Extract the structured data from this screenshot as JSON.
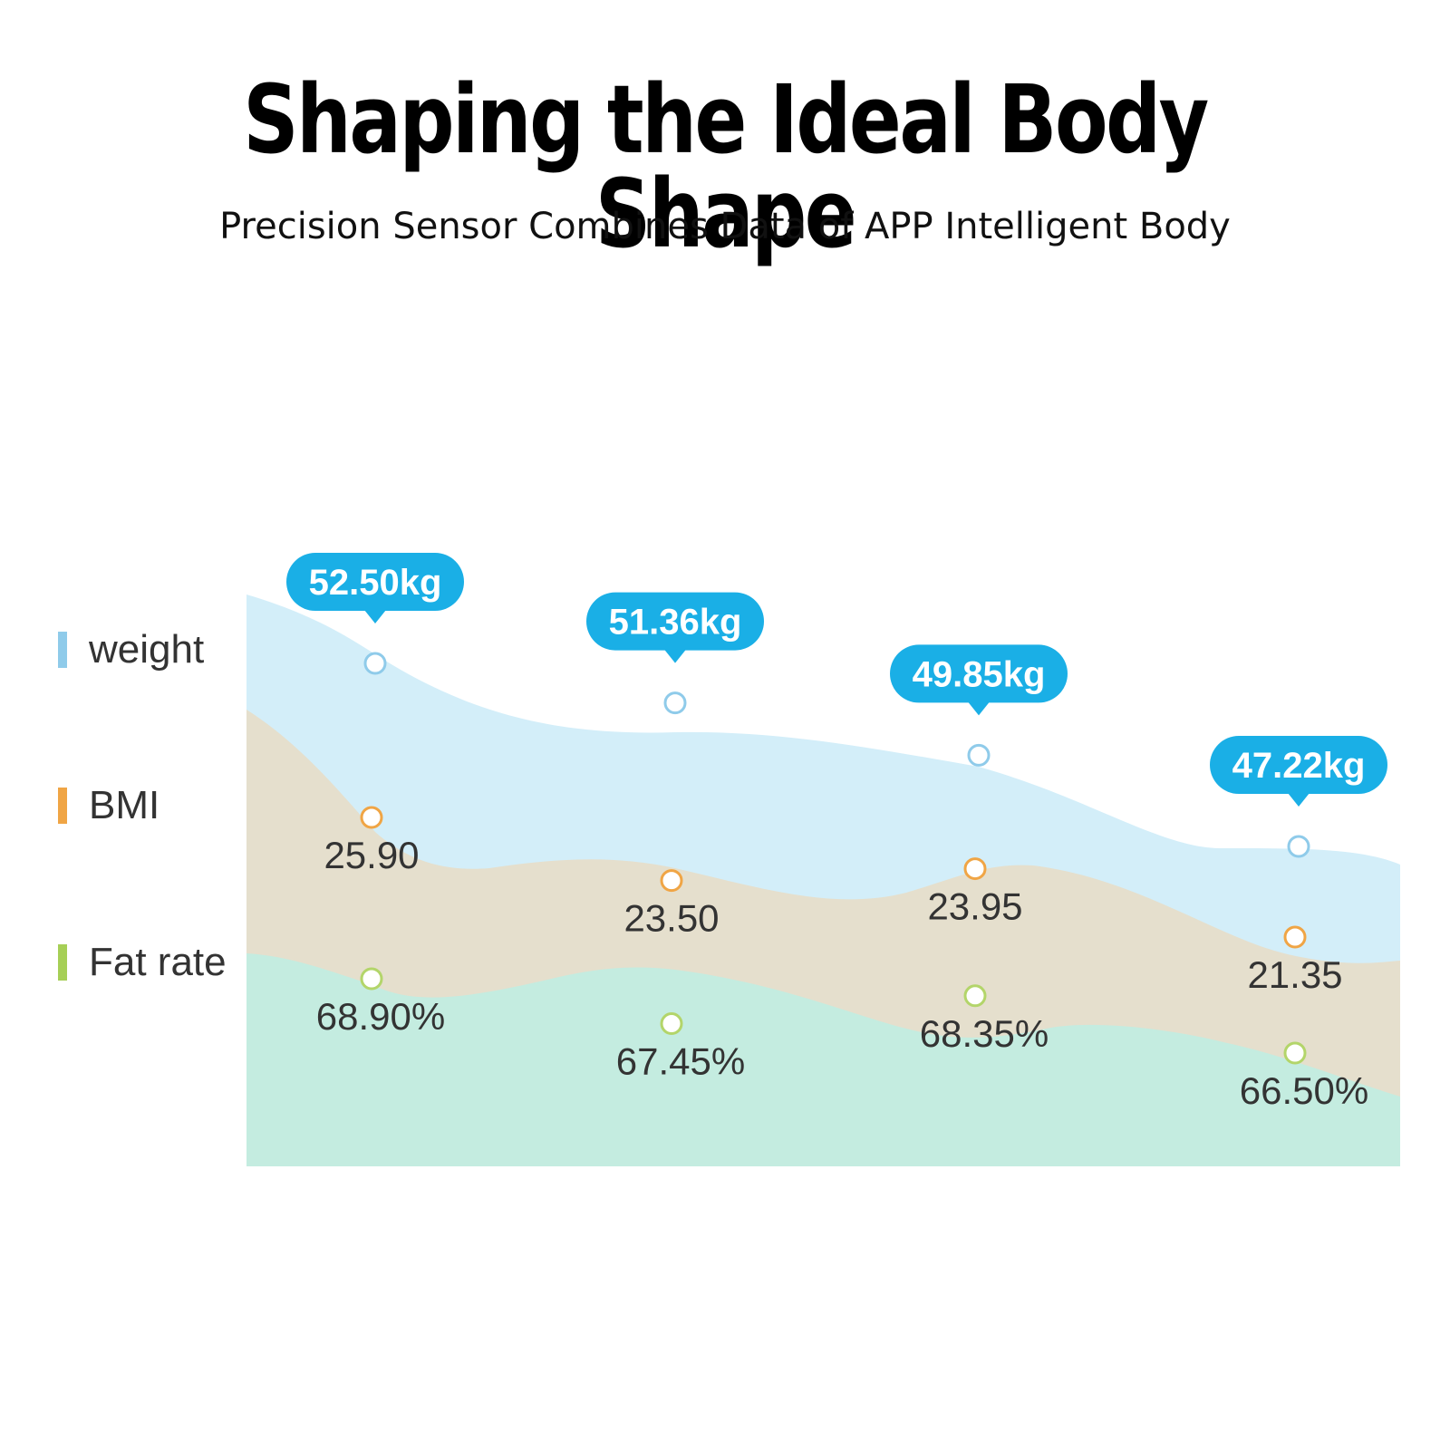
{
  "title": "Shaping the Ideal Body Shape",
  "subtitle": "Precision Sensor Combines Data of APP Intelligent Body",
  "legend": [
    {
      "label": "weight",
      "color": "#8fcbea"
    },
    {
      "label": "BMI",
      "color": "#f0a545"
    },
    {
      "label": "Fat rate",
      "color": "#a6cf56"
    }
  ],
  "colors": {
    "weight_fill": "#d3eef9",
    "bmi_fill": "#e5dfcd",
    "fat_fill": "#c4ece0",
    "weight_marker": "#8fcbea",
    "bmi_marker": "#f0a545",
    "fat_marker": "#b3d56a",
    "bubble": "#1aafe6"
  },
  "chart_data": {
    "type": "area",
    "series": [
      {
        "name": "weight",
        "values": [
          52.5,
          51.36,
          49.85,
          47.22
        ],
        "labels": [
          "52.50kg",
          "51.36kg",
          "49.85kg",
          "47.22kg"
        ]
      },
      {
        "name": "BMI",
        "values": [
          25.9,
          23.5,
          23.95,
          21.35
        ],
        "labels": [
          "25.90",
          "23.50",
          "23.95",
          "21.35"
        ]
      },
      {
        "name": "Fat rate",
        "values": [
          68.9,
          67.45,
          68.35,
          66.5
        ],
        "labels": [
          "68.90%",
          "67.45%",
          "68.35%",
          "66.50%"
        ]
      }
    ],
    "title": "Shaping the Ideal Body Shape",
    "grid": false,
    "legend": "left"
  }
}
